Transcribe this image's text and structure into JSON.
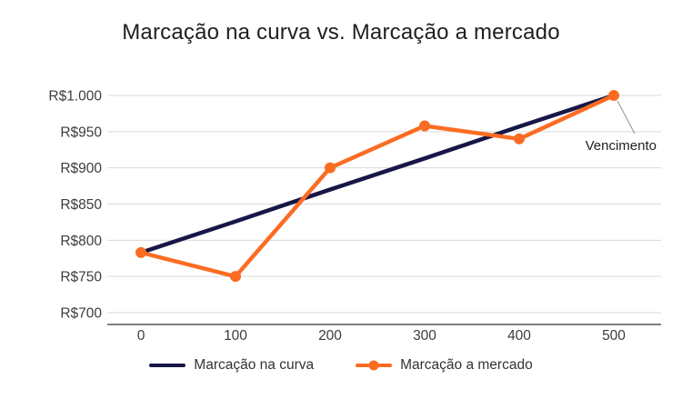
{
  "title": "Marcação na curva vs. Marcação a mercado",
  "legend": [
    {
      "label": "Marcação na curva",
      "color": "#171647",
      "marker": false
    },
    {
      "label": "Marcação a mercado",
      "color": "#fb6c23",
      "marker": true
    }
  ],
  "chart_data": {
    "type": "line",
    "title": "Marcação na curva vs. Marcação a mercado",
    "x": [
      0,
      100,
      200,
      300,
      400,
      500
    ],
    "x_tick_labels": [
      "0",
      "100",
      "200",
      "300",
      "400",
      "500"
    ],
    "y_ticks": [
      700,
      750,
      800,
      850,
      900,
      950,
      1000
    ],
    "y_tick_labels": [
      "R$700",
      "R$750",
      "R$800",
      "R$850",
      "R$900",
      "R$950",
      "R$1.000"
    ],
    "ylim": [
      700,
      1000
    ],
    "xlabel": "",
    "ylabel": "",
    "grid": "horizontal",
    "legend_position": "bottom",
    "series": [
      {
        "name": "Marcação na curva",
        "color": "#171647",
        "markers": false,
        "values": [
          783,
          826,
          870,
          913,
          957,
          1000
        ]
      },
      {
        "name": "Marcação a mercado",
        "color": "#fb6c23",
        "markers": true,
        "values": [
          783,
          750,
          900,
          958,
          940,
          1000
        ]
      }
    ],
    "annotation": {
      "text": "Vencimento",
      "target": {
        "x": 500,
        "y": 1000
      }
    }
  }
}
